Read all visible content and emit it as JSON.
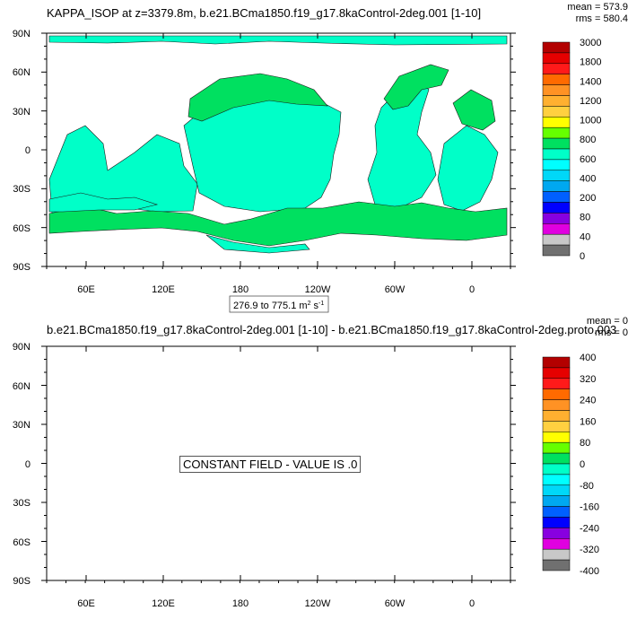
{
  "chart_data": [
    {
      "type": "heatmap",
      "title": "KAPPA_ISOP at z=3379.8m, b.e21.BCma1850.f19_g17.8kaControl-2deg.001 [1-10]",
      "stats": {
        "mean": "mean = 573.9",
        "rms": "rms = 580.4"
      },
      "x_ticks": [
        "60E",
        "120E",
        "180",
        "120W",
        "60W",
        "0"
      ],
      "y_ticks": [
        "90N",
        "60N",
        "30N",
        "0",
        "30S",
        "60S",
        "90S"
      ],
      "range_label": {
        "text": "276.9 to 775.1 m",
        "sup1": "2",
        "mid": " s",
        "sup2": "-1"
      },
      "colorbar": {
        "labels": [
          "3000",
          "1800",
          "1400",
          "1200",
          "1000",
          "800",
          "600",
          "400",
          "200",
          "80",
          "40",
          "0"
        ],
        "colors": [
          "#b30000",
          "#e60000",
          "#ff1a1a",
          "#ff6a00",
          "#ff9224",
          "#ffb030",
          "#ffd040",
          "#ffff00",
          "#66ff00",
          "#00e060",
          "#00ffc8",
          "#00ffff",
          "#00d8f8",
          "#00a8f0",
          "#0060ff",
          "#0000ff",
          "#8800e0",
          "#e000e0",
          "#c8c8c8",
          "#707070"
        ]
      },
      "field_description": "values mostly 400-800 over ocean; land masked"
    },
    {
      "type": "heatmap",
      "title": "b.e21.BCma1850.f19_g17.8kaControl-2deg.001 [1-10] - b.e21.BCma1850.f19_g17.8kaControl-2deg.proto.003",
      "stats": {
        "mean": "mean = 0",
        "rms": "rms = 0"
      },
      "x_ticks": [
        "60E",
        "120E",
        "180",
        "120W",
        "60W",
        "0"
      ],
      "y_ticks": [
        "90N",
        "60N",
        "30N",
        "0",
        "30S",
        "60S",
        "90S"
      ],
      "annotation": "CONSTANT FIELD - VALUE IS .0",
      "colorbar": {
        "labels": [
          "400",
          "320",
          "240",
          "160",
          "80",
          "0",
          "-80",
          "-160",
          "-240",
          "-320",
          "-400"
        ],
        "colors": [
          "#b30000",
          "#e60000",
          "#ff1a1a",
          "#ff6a00",
          "#ff9224",
          "#ffb030",
          "#ffd040",
          "#ffff00",
          "#66ff00",
          "#00e060",
          "#00ffc8",
          "#00ffff",
          "#00d8f8",
          "#00a8f0",
          "#0060ff",
          "#0000ff",
          "#8800e0",
          "#e000e0",
          "#c8c8c8",
          "#707070"
        ]
      }
    }
  ]
}
